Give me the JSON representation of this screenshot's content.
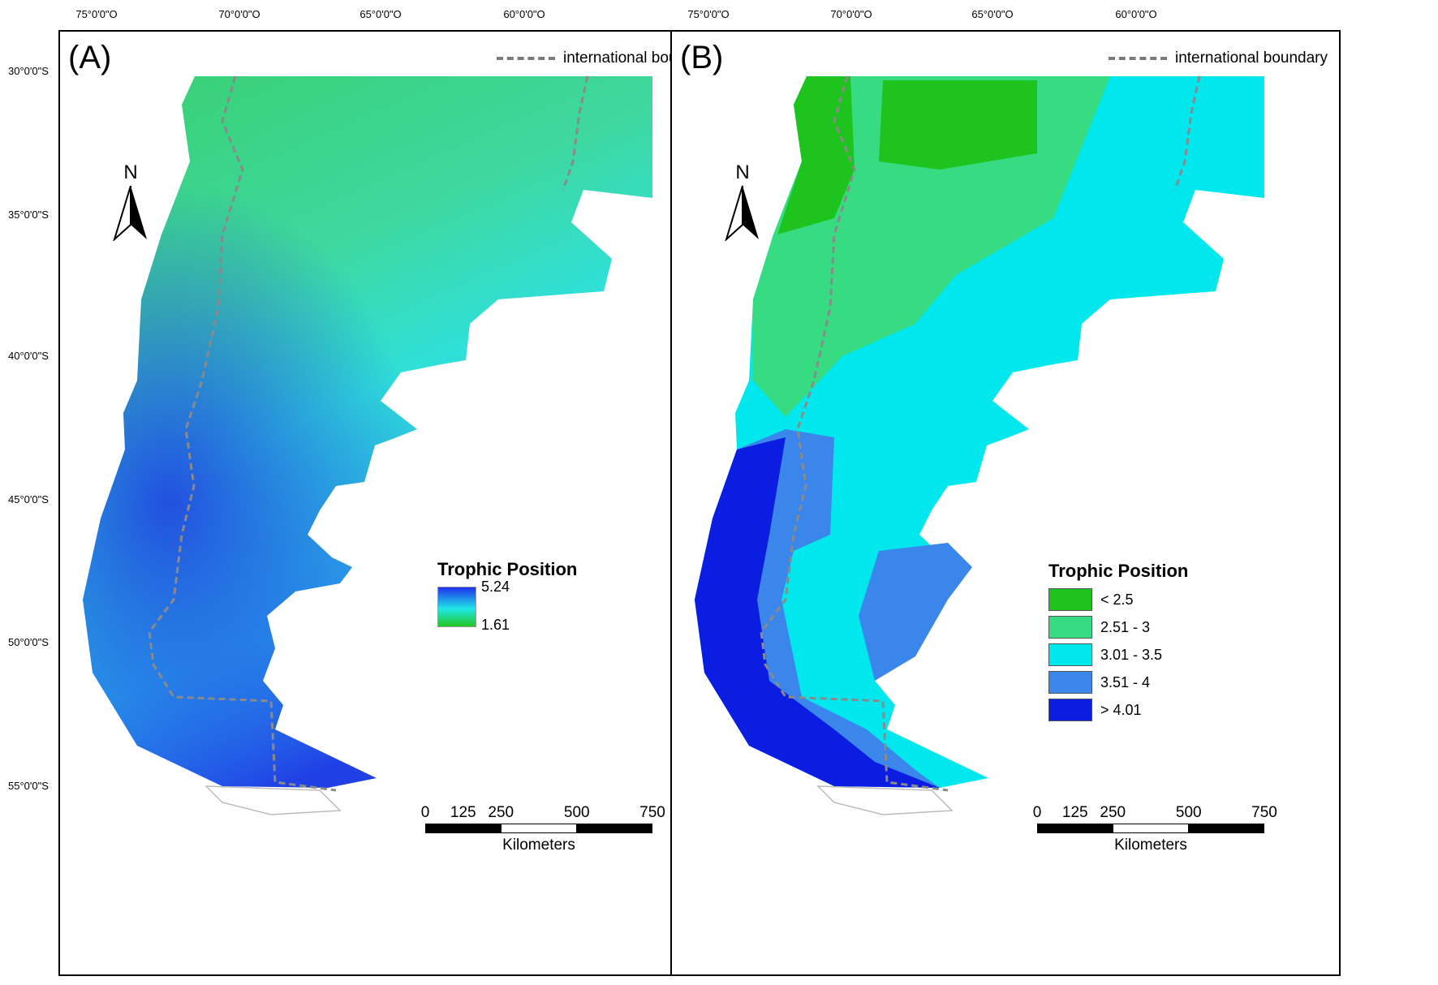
{
  "longitude_labels": [
    "75°0'0\"O",
    "70°0'0\"O",
    "65°0'0\"O",
    "60°0'0\"O"
  ],
  "latitude_labels": [
    "30°0'0\"S",
    "35°0'0\"S",
    "40°0'0\"S",
    "45°0'0\"S",
    "50°0'0\"S",
    "55°0'0\"S"
  ],
  "boundary_legend_label": "international boundary",
  "north_arrow_label": "N",
  "scale_bar": {
    "ticks": [
      "0",
      "125",
      "250",
      "500",
      "750"
    ],
    "unit": "Kilometers"
  },
  "panels": [
    {
      "label": "(A)",
      "legend": {
        "title": "Trophic Position",
        "type": "continuous",
        "max_label": "5.24",
        "min_label": "1.61",
        "colors": [
          "#2030ee",
          "#20e8e8",
          "#22c822"
        ]
      }
    },
    {
      "label": "(B)",
      "legend": {
        "title": "Trophic Position",
        "type": "classified",
        "classes": [
          {
            "label": "< 2.5",
            "color": "#1ec31e"
          },
          {
            "label": "2.51 - 3",
            "color": "#37dc82"
          },
          {
            "label": "3.01 - 3.5",
            "color": "#00e8ee"
          },
          {
            "label": "3.51 - 4",
            "color": "#3a86ea"
          },
          {
            "label": "> 4.01",
            "color": "#0a1de0"
          }
        ]
      }
    }
  ],
  "map_colors": {
    "land_light": "#f4f4f4",
    "boundary": "#8a8a8a",
    "outline": "#bbbbbb"
  }
}
